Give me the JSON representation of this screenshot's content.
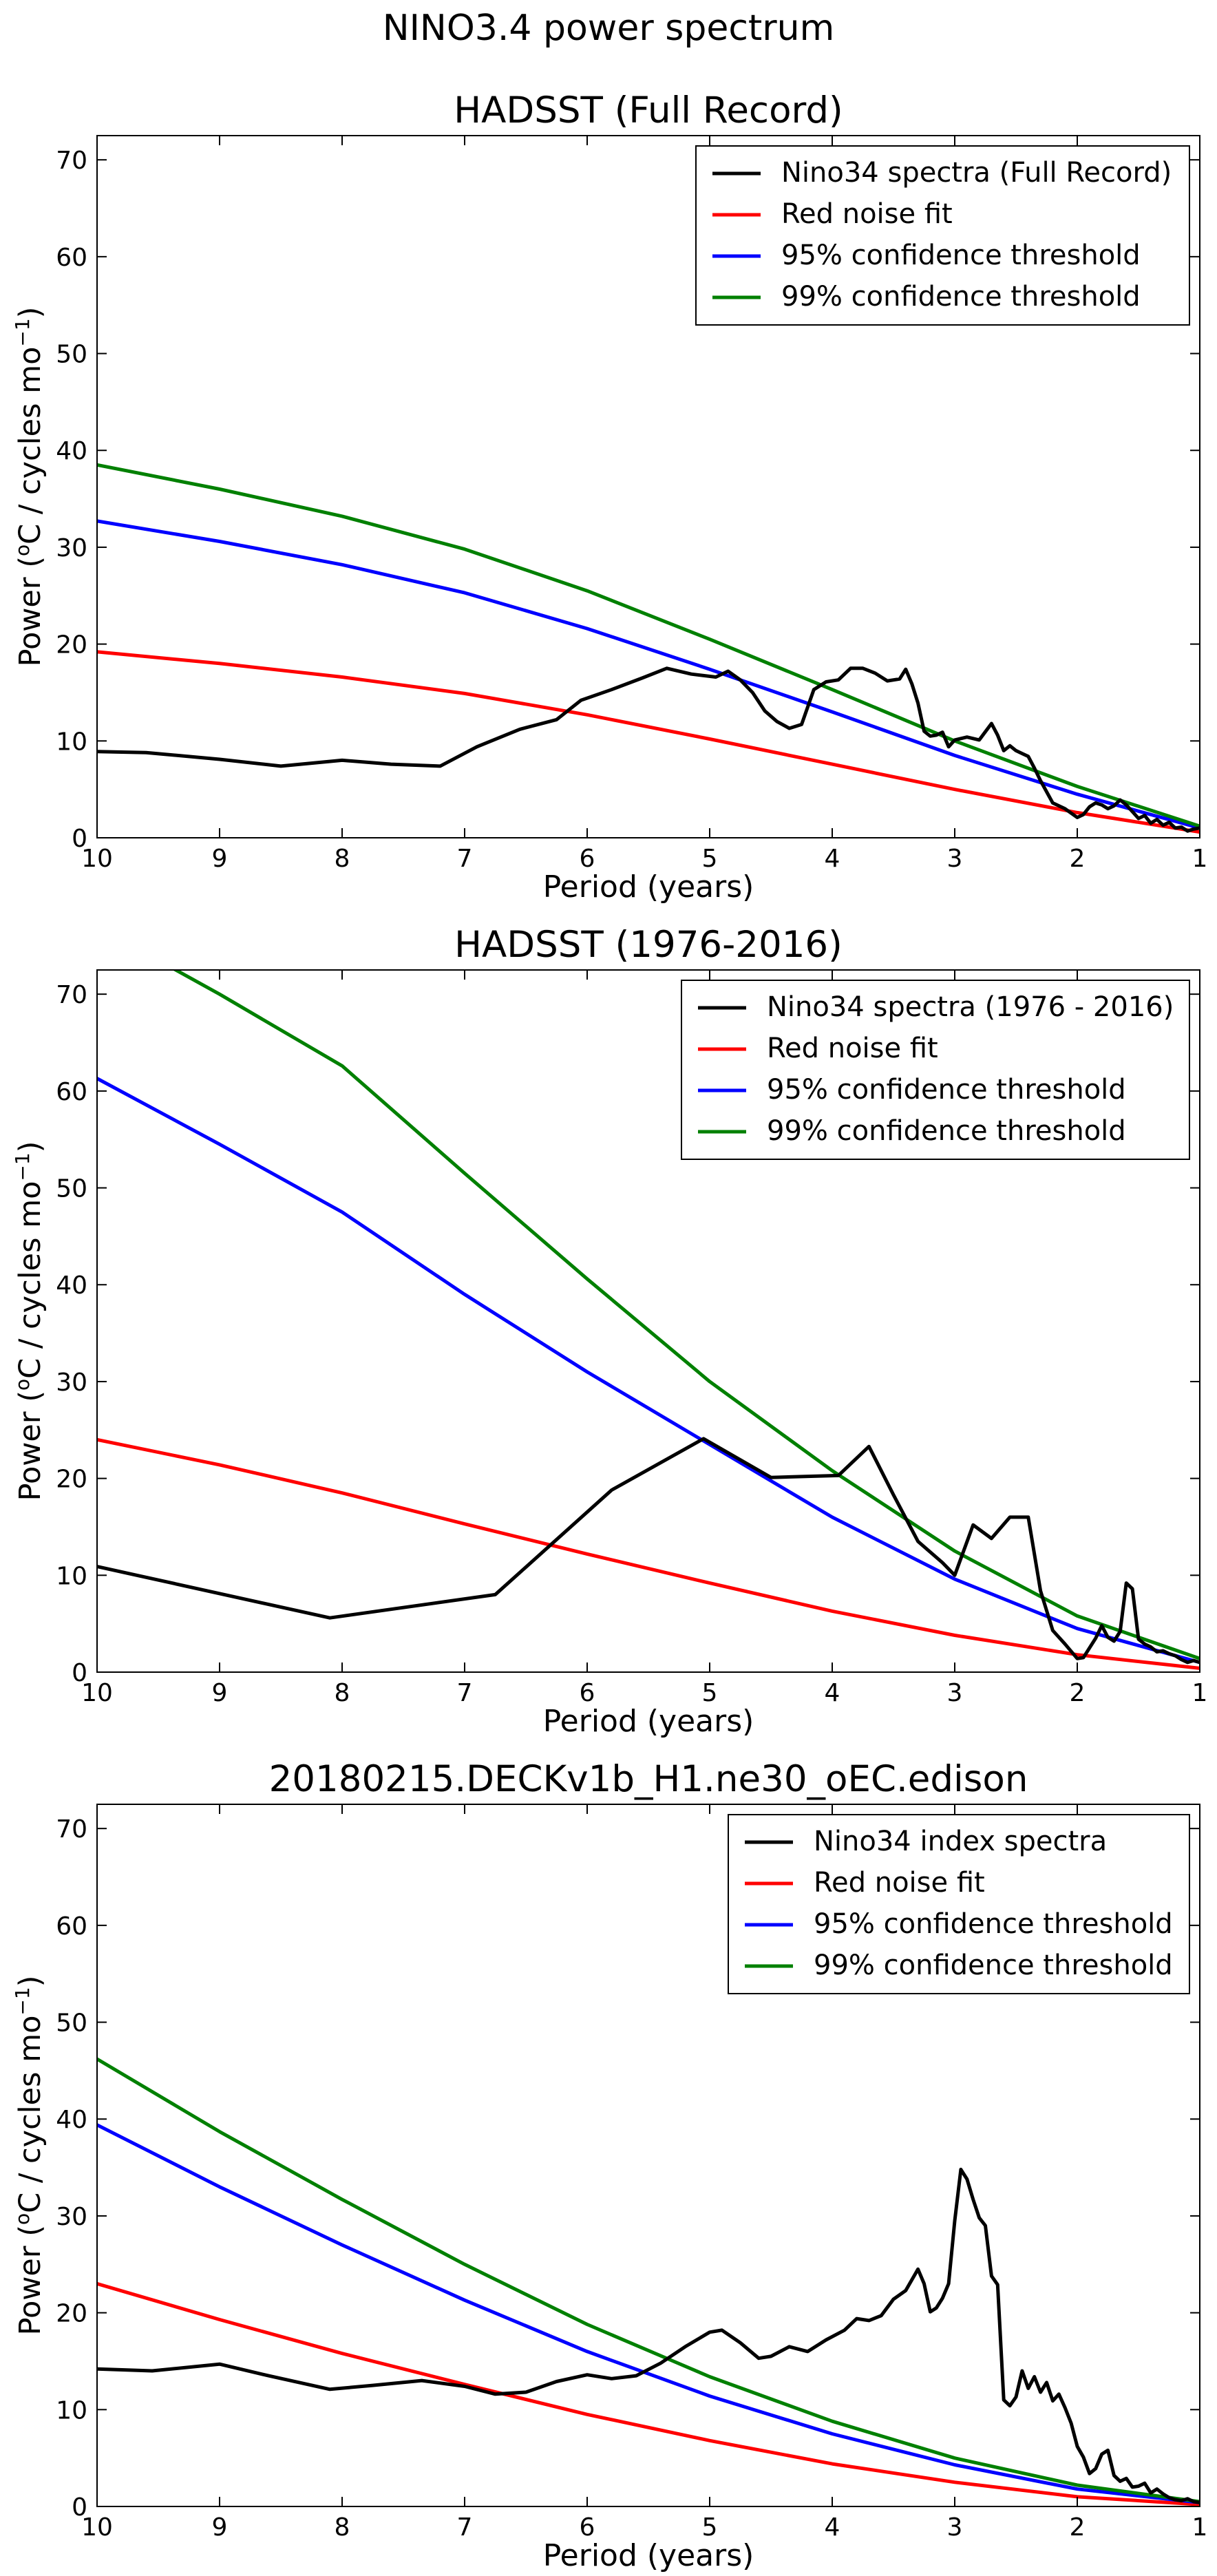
{
  "suptitle": "NINO3.4 power spectrum",
  "colors": {
    "spectra": "#000000",
    "red_noise": "#ff0000",
    "conf95": "#0000ff",
    "conf99": "#008000"
  },
  "chart_data": [
    {
      "type": "line",
      "title": "HADSST (Full Record)",
      "xlabel": "Period (years)",
      "ylabel": "Power (°C / cycles mo⁻¹)",
      "ylabel_parts": {
        "pre": "Power (",
        "sup_o": "o",
        "mid": "C / cycles mo",
        "sup_exp": "−1",
        "post": ")"
      },
      "xlim": [
        10,
        1
      ],
      "ylim": [
        0,
        72.5
      ],
      "xticks": [
        10,
        9,
        8,
        7,
        6,
        5,
        4,
        3,
        2,
        1
      ],
      "yticks": [
        0,
        10,
        20,
        30,
        40,
        50,
        60,
        70
      ],
      "legend": "top-right",
      "series": [
        {
          "name": "Nino34 spectra (Full Record)",
          "color": "#000000",
          "x": [
            10,
            9.6,
            9.0,
            8.5,
            8.0,
            7.6,
            7.2,
            6.9,
            6.55,
            6.25,
            6.05,
            5.8,
            5.55,
            5.35,
            5.15,
            4.95,
            4.85,
            4.75,
            4.65,
            4.55,
            4.45,
            4.35,
            4.25,
            4.15,
            4.05,
            3.95,
            3.85,
            3.75,
            3.65,
            3.55,
            3.45,
            3.4,
            3.35,
            3.3,
            3.25,
            3.2,
            3.15,
            3.1,
            3.05,
            3.0,
            2.9,
            2.8,
            2.7,
            2.65,
            2.6,
            2.55,
            2.5,
            2.45,
            2.4,
            2.35,
            2.3,
            2.2,
            2.1,
            2.0,
            1.95,
            1.9,
            1.85,
            1.8,
            1.75,
            1.7,
            1.65,
            1.6,
            1.55,
            1.5,
            1.45,
            1.4,
            1.35,
            1.3,
            1.25,
            1.2,
            1.15,
            1.1,
            1.05,
            1.0
          ],
          "y": [
            8.9,
            8.8,
            8.1,
            7.4,
            8.0,
            7.6,
            7.4,
            9.4,
            11.2,
            12.2,
            14.2,
            15.3,
            16.5,
            17.5,
            16.9,
            16.6,
            17.2,
            16.3,
            15.0,
            13.1,
            12.0,
            11.3,
            11.7,
            15.3,
            16.1,
            16.3,
            17.5,
            17.5,
            17.0,
            16.2,
            16.4,
            17.4,
            15.9,
            13.9,
            11.0,
            10.5,
            10.6,
            10.9,
            9.4,
            10.1,
            10.4,
            10.1,
            11.8,
            10.6,
            9.0,
            9.5,
            9.0,
            8.7,
            8.4,
            7.2,
            5.9,
            3.6,
            3.0,
            2.1,
            2.4,
            3.2,
            3.6,
            3.4,
            3.0,
            3.3,
            3.9,
            3.4,
            2.7,
            2.0,
            2.3,
            1.5,
            1.9,
            1.3,
            1.6,
            1.0,
            1.1,
            0.7,
            0.9,
            1.0
          ]
        },
        {
          "name": "Red noise fit",
          "color": "#ff0000",
          "x": [
            10,
            9,
            8,
            7,
            6,
            5,
            4,
            3,
            2,
            1
          ],
          "y": [
            19.2,
            18.0,
            16.6,
            14.9,
            12.7,
            10.2,
            7.6,
            5.0,
            2.6,
            0.6
          ]
        },
        {
          "name": "95% confidence threshold",
          "color": "#0000ff",
          "x": [
            10,
            9,
            8,
            7,
            6,
            5,
            4,
            3,
            2,
            1
          ],
          "y": [
            32.7,
            30.6,
            28.2,
            25.3,
            21.6,
            17.4,
            13.0,
            8.5,
            4.5,
            1.0
          ]
        },
        {
          "name": "99% confidence threshold",
          "color": "#008000",
          "x": [
            10,
            9,
            8,
            7,
            6,
            5,
            4,
            3,
            2,
            1
          ],
          "y": [
            38.5,
            36.0,
            33.2,
            29.8,
            25.5,
            20.5,
            15.3,
            10.0,
            5.3,
            1.2
          ]
        }
      ]
    },
    {
      "type": "line",
      "title": "HADSST (1976-2016)",
      "xlabel": "Period (years)",
      "ylabel": "Power (°C / cycles mo⁻¹)",
      "ylabel_parts": {
        "pre": "Power (",
        "sup_o": "o",
        "mid": "C / cycles mo",
        "sup_exp": "−1",
        "post": ")"
      },
      "xlim": [
        10,
        1
      ],
      "ylim": [
        0,
        72.5
      ],
      "xticks": [
        10,
        9,
        8,
        7,
        6,
        5,
        4,
        3,
        2,
        1
      ],
      "yticks": [
        0,
        10,
        20,
        30,
        40,
        50,
        60,
        70
      ],
      "legend": "top-right",
      "series": [
        {
          "name": "Nino34 spectra (1976 - 2016)",
          "color": "#000000",
          "x": [
            10,
            8.1,
            6.75,
            5.8,
            5.05,
            4.5,
            3.95,
            3.7,
            3.5,
            3.3,
            3.1,
            3.0,
            2.85,
            2.7,
            2.55,
            2.4,
            2.3,
            2.2,
            2.1,
            2.0,
            1.95,
            1.9,
            1.85,
            1.8,
            1.75,
            1.7,
            1.65,
            1.6,
            1.55,
            1.5,
            1.45,
            1.4,
            1.35,
            1.3,
            1.25,
            1.2,
            1.15,
            1.1,
            1.05,
            1.0
          ],
          "y": [
            10.9,
            5.6,
            8.0,
            18.8,
            24.1,
            20.1,
            20.3,
            23.3,
            18.3,
            13.5,
            11.3,
            10.0,
            15.2,
            13.8,
            16.0,
            16.0,
            8.4,
            4.3,
            2.9,
            1.4,
            1.5,
            2.5,
            3.5,
            4.8,
            3.6,
            3.2,
            4.2,
            9.2,
            8.6,
            3.4,
            2.9,
            2.6,
            2.1,
            2.2,
            1.9,
            1.7,
            1.3,
            1.0,
            1.2,
            1.0
          ]
        },
        {
          "name": "Red noise fit",
          "color": "#ff0000",
          "x": [
            10,
            9,
            8,
            7,
            6,
            5,
            4,
            3,
            2,
            1
          ],
          "y": [
            24.0,
            21.4,
            18.5,
            15.3,
            12.2,
            9.2,
            6.3,
            3.8,
            1.8,
            0.4
          ]
        },
        {
          "name": "95% confidence threshold",
          "color": "#0000ff",
          "x": [
            10,
            9,
            8,
            7,
            6,
            5,
            4,
            3,
            2,
            1
          ],
          "y": [
            61.3,
            54.5,
            47.5,
            39.0,
            31.0,
            23.5,
            16.0,
            9.6,
            4.5,
            1.0
          ]
        },
        {
          "name": "99% confidence threshold",
          "color": "#008000",
          "x": [
            10,
            9,
            8,
            7,
            6,
            5,
            4,
            3,
            2,
            1
          ],
          "y": [
            77.0,
            70.0,
            62.6,
            51.5,
            40.6,
            30.0,
            20.8,
            12.5,
            5.8,
            1.4
          ]
        }
      ]
    },
    {
      "type": "line",
      "title": "20180215.DECKv1b_H1.ne30_oEC.edison",
      "xlabel": "Period (years)",
      "ylabel": "Power (°C / cycles mo⁻¹)",
      "ylabel_parts": {
        "pre": "Power (",
        "sup_o": "o",
        "mid": "C / cycles mo",
        "sup_exp": "−1",
        "post": ")"
      },
      "xlim": [
        10,
        1
      ],
      "ylim": [
        0,
        72.5
      ],
      "xticks": [
        10,
        9,
        8,
        7,
        6,
        5,
        4,
        3,
        2,
        1
      ],
      "yticks": [
        0,
        10,
        20,
        30,
        40,
        50,
        60,
        70
      ],
      "legend": "top-right",
      "series": [
        {
          "name": "Nino34 index spectra",
          "color": "#000000",
          "x": [
            10,
            9.55,
            9.0,
            8.6,
            8.1,
            7.75,
            7.35,
            7.0,
            6.75,
            6.5,
            6.25,
            6.0,
            5.8,
            5.6,
            5.4,
            5.2,
            5.0,
            4.9,
            4.75,
            4.6,
            4.5,
            4.35,
            4.2,
            4.05,
            3.9,
            3.8,
            3.7,
            3.6,
            3.5,
            3.4,
            3.3,
            3.25,
            3.2,
            3.15,
            3.1,
            3.05,
            3.0,
            2.95,
            2.9,
            2.85,
            2.8,
            2.75,
            2.7,
            2.65,
            2.6,
            2.55,
            2.5,
            2.45,
            2.4,
            2.35,
            2.3,
            2.25,
            2.2,
            2.15,
            2.1,
            2.05,
            2.0,
            1.95,
            1.9,
            1.85,
            1.8,
            1.75,
            1.7,
            1.65,
            1.6,
            1.55,
            1.5,
            1.45,
            1.4,
            1.35,
            1.3,
            1.25,
            1.2,
            1.15,
            1.1,
            1.05,
            1.0
          ],
          "y": [
            14.2,
            14.0,
            14.7,
            13.5,
            12.1,
            12.5,
            13.0,
            12.4,
            11.6,
            11.8,
            12.9,
            13.6,
            13.2,
            13.5,
            14.8,
            16.5,
            18.0,
            18.2,
            16.9,
            15.3,
            15.5,
            16.5,
            16.0,
            17.2,
            18.2,
            19.4,
            19.2,
            19.7,
            21.4,
            22.3,
            24.5,
            23.0,
            20.1,
            20.5,
            21.5,
            23.0,
            29.5,
            34.8,
            33.8,
            31.7,
            29.8,
            29.0,
            23.8,
            22.9,
            11.0,
            10.4,
            11.3,
            14.0,
            12.2,
            13.4,
            11.8,
            12.8,
            10.9,
            11.6,
            10.2,
            8.6,
            6.2,
            5.1,
            3.4,
            3.9,
            5.4,
            5.8,
            3.2,
            2.6,
            2.9,
            2.0,
            2.1,
            2.4,
            1.4,
            1.8,
            1.3,
            0.9,
            0.7,
            0.6,
            0.8,
            0.5,
            0.4
          ]
        },
        {
          "name": "Red noise fit",
          "color": "#ff0000",
          "x": [
            10,
            9,
            8,
            7,
            6,
            5,
            4,
            3,
            2,
            1
          ],
          "y": [
            23.0,
            19.3,
            15.8,
            12.6,
            9.5,
            6.8,
            4.4,
            2.5,
            1.0,
            0.2
          ]
        },
        {
          "name": "95% confidence threshold",
          "color": "#0000ff",
          "x": [
            10,
            9,
            8,
            7,
            6,
            5,
            4,
            3,
            2,
            1
          ],
          "y": [
            39.4,
            33.0,
            27.0,
            21.3,
            16.0,
            11.4,
            7.5,
            4.3,
            1.8,
            0.4
          ]
        },
        {
          "name": "99% confidence threshold",
          "color": "#008000",
          "x": [
            10,
            9,
            8,
            7,
            6,
            5,
            4,
            3,
            2,
            1
          ],
          "y": [
            46.2,
            38.7,
            31.7,
            25.0,
            18.8,
            13.4,
            8.8,
            5.0,
            2.2,
            0.5
          ]
        }
      ]
    }
  ]
}
